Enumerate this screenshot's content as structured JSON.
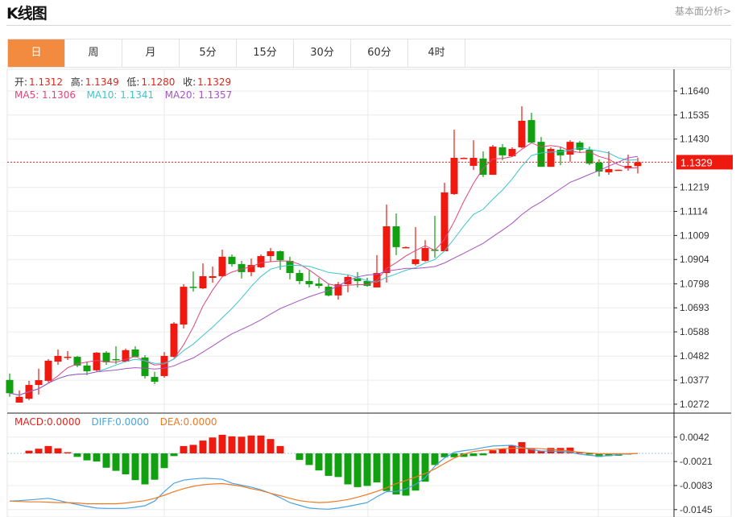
{
  "header": {
    "title": "K线图",
    "more_link": "基本面分析>"
  },
  "tabs": [
    {
      "label": "日",
      "active": true
    },
    {
      "label": "周"
    },
    {
      "label": "月"
    },
    {
      "label": "5分"
    },
    {
      "label": "15分"
    },
    {
      "label": "30分"
    },
    {
      "label": "60分"
    },
    {
      "label": "4时"
    }
  ],
  "ohlc_legend": {
    "open_label": "开:",
    "open": "1.1312",
    "high_label": "高:",
    "high": "1.1349",
    "low_label": "低:",
    "low": "1.1280",
    "close_label": "收:",
    "close": "1.1329"
  },
  "ma_legend": {
    "ma5": "MA5: 1.1306",
    "ma10": "MA10: 1.1341",
    "ma20": "MA20: 1.1357"
  },
  "macd_legend": {
    "macd": "MACD:0.0000",
    "diff": "DIFF:0.0000",
    "dea": "DEA:0.0000"
  },
  "colors": {
    "up": "#ee1a10",
    "down": "#10a010",
    "ma5": "#e0457b",
    "ma10": "#3ec4d0",
    "ma20": "#a455c0",
    "diff": "#4aa3e0",
    "dea": "#f07a24",
    "accent": "#f28b3f"
  },
  "chart_data": [
    {
      "type": "candlestick",
      "y_ticks": [
        "1.1640",
        "1.1535",
        "1.1430",
        "1.1219",
        "1.1114",
        "1.1009",
        "1.0904",
        "1.0798",
        "1.0693",
        "1.0588",
        "1.0482",
        "1.0377",
        "1.0272"
      ],
      "ylim": [
        1.0272,
        1.164
      ],
      "last_price_label": "1.1329",
      "grid": true,
      "ohlc": [
        [
          1.0378,
          1.0406,
          1.0304,
          1.032
        ],
        [
          1.0279,
          1.0332,
          1.0279,
          1.0304
        ],
        [
          1.0296,
          1.0374,
          1.029,
          1.0356
        ],
        [
          1.0356,
          1.0427,
          1.0314,
          1.0377
        ],
        [
          1.0374,
          1.0469,
          1.0367,
          1.0462
        ],
        [
          1.0458,
          1.0511,
          1.0444,
          1.0483
        ],
        [
          1.0476,
          1.0504,
          1.0465,
          1.0479
        ],
        [
          1.0479,
          1.0483,
          1.0434,
          1.0441
        ],
        [
          1.0441,
          1.0455,
          1.0399,
          1.0416
        ],
        [
          1.042,
          1.05,
          1.0416,
          1.0497
        ],
        [
          1.0497,
          1.0504,
          1.0444,
          1.0455
        ],
        [
          1.0469,
          1.0525,
          1.0448,
          1.0465
        ],
        [
          1.0458,
          1.0515,
          1.0455,
          1.0508
        ],
        [
          1.0511,
          1.0525,
          1.0476,
          1.0479
        ],
        [
          1.0476,
          1.0486,
          1.0384,
          1.0395
        ],
        [
          1.0391,
          1.0413,
          1.036,
          1.037
        ],
        [
          1.0395,
          1.05,
          1.0388,
          1.0483
        ],
        [
          1.0479,
          1.0631,
          1.0476,
          1.0624
        ],
        [
          1.062,
          1.0796,
          1.0603,
          1.0785
        ],
        [
          1.0785,
          1.0852,
          1.0764,
          1.0782
        ],
        [
          1.0778,
          1.0887,
          1.0775,
          1.0831
        ],
        [
          1.0824,
          1.0873,
          1.0803,
          1.0831
        ],
        [
          1.0831,
          1.0947,
          1.0828,
          1.0916
        ],
        [
          1.0916,
          1.0926,
          1.0873,
          1.0884
        ],
        [
          1.0884,
          1.0898,
          1.0821,
          1.0849
        ],
        [
          1.0849,
          1.0908,
          1.0831,
          1.088
        ],
        [
          1.087,
          1.0926,
          1.0866,
          1.0919
        ],
        [
          1.0919,
          1.0954,
          1.0894,
          1.094
        ],
        [
          1.094,
          1.0943,
          1.0859,
          1.0901
        ],
        [
          1.0898,
          1.0916,
          1.0817,
          1.0845
        ],
        [
          1.0845,
          1.0859,
          1.0796,
          1.081
        ],
        [
          1.081,
          1.0856,
          1.0782,
          1.0796
        ],
        [
          1.0799,
          1.0824,
          1.0778,
          1.0789
        ],
        [
          1.0785,
          1.0799,
          1.0743,
          1.0747
        ],
        [
          1.0747,
          1.0806,
          1.0729,
          1.0796
        ],
        [
          1.0796,
          1.0838,
          1.0761,
          1.0828
        ],
        [
          1.0821,
          1.0849,
          1.0782,
          1.081
        ],
        [
          1.081,
          1.0824,
          1.0785,
          1.0789
        ],
        [
          1.0782,
          1.0923,
          1.0782,
          1.0845
        ],
        [
          1.0845,
          1.1144,
          1.0803,
          1.1049
        ],
        [
          1.1049,
          1.1105,
          1.0923,
          1.0958
        ],
        [
          1.0954,
          1.0961,
          1.0954,
          1.0958
        ],
        [
          1.0884,
          1.1046,
          1.0877,
          1.0905
        ],
        [
          1.0898,
          1.0989,
          1.0894,
          1.0954
        ],
        [
          1.0947,
          1.1095,
          1.0912,
          1.0943
        ],
        [
          1.094,
          1.1239,
          1.094,
          1.1197
        ],
        [
          1.119,
          1.1471,
          1.1186,
          1.1348
        ],
        [
          1.1346,
          1.135,
          1.1344,
          1.1348
        ],
        [
          1.1313,
          1.1425,
          1.1295,
          1.1348
        ],
        [
          1.1345,
          1.1376,
          1.1264,
          1.1274
        ],
        [
          1.1274,
          1.1404,
          1.1274,
          1.1397
        ],
        [
          1.1394,
          1.1408,
          1.1338,
          1.1359
        ],
        [
          1.1355,
          1.1394,
          1.1352,
          1.1387
        ],
        [
          1.1394,
          1.1573,
          1.139,
          1.151
        ],
        [
          1.1513,
          1.1545,
          1.1415,
          1.1415
        ],
        [
          1.1418,
          1.1439,
          1.1309,
          1.1309
        ],
        [
          1.1309,
          1.1394,
          1.1309,
          1.1387
        ],
        [
          1.1383,
          1.1394,
          1.1316,
          1.1359
        ],
        [
          1.1362,
          1.1425,
          1.1331,
          1.1418
        ],
        [
          1.1415,
          1.1422,
          1.1373,
          1.1383
        ],
        [
          1.1383,
          1.1397,
          1.1316,
          1.1323
        ],
        [
          1.1327,
          1.1341,
          1.1267,
          1.1288
        ],
        [
          1.1285,
          1.1376,
          1.1274,
          1.1299
        ],
        [
          1.1295,
          1.1297,
          1.1294,
          1.1296
        ],
        [
          1.1302,
          1.1362,
          1.1292,
          1.1313
        ],
        [
          1.1312,
          1.1349,
          1.128,
          1.1329
        ]
      ],
      "series": [
        {
          "name": "MA5"
        },
        {
          "name": "MA10"
        },
        {
          "name": "MA20"
        }
      ]
    },
    {
      "type": "bar+line",
      "y_ticks": [
        "0.0042",
        "-0.0021",
        "-0.0083",
        "-0.0145"
      ],
      "ylim": [
        -0.0145,
        0.0042
      ],
      "macd_hist": [
        0,
        0,
        0.0007,
        0.0012,
        0.0019,
        0.0013,
        0.0003,
        -0.0009,
        -0.0018,
        -0.0021,
        -0.0037,
        -0.0045,
        -0.0054,
        -0.0069,
        -0.008,
        -0.0068,
        -0.0038,
        -0.0007,
        0.0019,
        0.0022,
        0.0033,
        0.0041,
        0.0048,
        0.0044,
        0.0043,
        0.0046,
        0.0046,
        0.0037,
        0.0019,
        0,
        -0.0017,
        -0.003,
        -0.0044,
        -0.0058,
        -0.0061,
        -0.008,
        -0.0087,
        -0.0084,
        -0.0075,
        -0.0097,
        -0.0106,
        -0.0109,
        -0.0096,
        -0.0073,
        -0.003,
        -0.001,
        -0.001,
        -0.0009,
        -0.0007,
        -0.0005,
        0.0008,
        0.0012,
        0.0021,
        0.0029,
        0.0012,
        0.0006,
        0.0014,
        0.0014,
        0.0015,
        0.0003,
        -0.0003,
        -0.0009,
        -0.0007,
        -0.0006,
        -0.0003,
        0
      ],
      "diff": [
        -0.0123,
        -0.0122,
        -0.012,
        -0.0118,
        -0.0116,
        -0.0121,
        -0.0127,
        -0.0132,
        -0.0137,
        -0.0141,
        -0.0142,
        -0.0142,
        -0.0142,
        -0.0139,
        -0.0135,
        -0.0123,
        -0.0099,
        -0.0077,
        -0.0069,
        -0.0066,
        -0.0064,
        -0.0065,
        -0.0067,
        -0.0077,
        -0.0082,
        -0.0087,
        -0.0094,
        -0.0103,
        -0.0114,
        -0.0127,
        -0.0134,
        -0.0141,
        -0.0143,
        -0.0144,
        -0.0141,
        -0.0137,
        -0.0132,
        -0.0127,
        -0.0112,
        -0.0099,
        -0.0098,
        -0.0092,
        -0.008,
        -0.0063,
        -0.0033,
        -0.0012,
        0.0003,
        0.0007,
        0.001,
        0.0015,
        0.0019,
        0.002,
        0.0021,
        0.0015,
        0.001,
        0.0006,
        0.0006,
        0.0005,
        0.0003,
        -0.0002,
        -0.0005,
        -0.0007,
        -0.0006,
        -0.0003,
        -0.0001,
        0
      ],
      "dea": [
        -0.0123,
        -0.0124,
        -0.0125,
        -0.0125,
        -0.0126,
        -0.0127,
        -0.0127,
        -0.0128,
        -0.013,
        -0.013,
        -0.013,
        -0.013,
        -0.0128,
        -0.0125,
        -0.0122,
        -0.0116,
        -0.0108,
        -0.0099,
        -0.0091,
        -0.0085,
        -0.0081,
        -0.0079,
        -0.0078,
        -0.0081,
        -0.0085,
        -0.0091,
        -0.0096,
        -0.0103,
        -0.0109,
        -0.0116,
        -0.0122,
        -0.0125,
        -0.0127,
        -0.0126,
        -0.0123,
        -0.0119,
        -0.0113,
        -0.0106,
        -0.0098,
        -0.0089,
        -0.0078,
        -0.007,
        -0.0061,
        -0.0052,
        -0.004,
        -0.0026,
        -0.0012,
        -0.0002,
        0.0005,
        0.0008,
        0.001,
        0.0012,
        0.0013,
        0.0014,
        0.0013,
        0.0012,
        0.001,
        0.0008,
        0.0006,
        0.0003,
        0.0001,
        -0.0001,
        -0.0001,
        -0.0001,
        -0.0001,
        0
      ],
      "series": [
        {
          "name": "MACD"
        },
        {
          "name": "DIFF"
        },
        {
          "name": "DEA"
        }
      ]
    }
  ]
}
